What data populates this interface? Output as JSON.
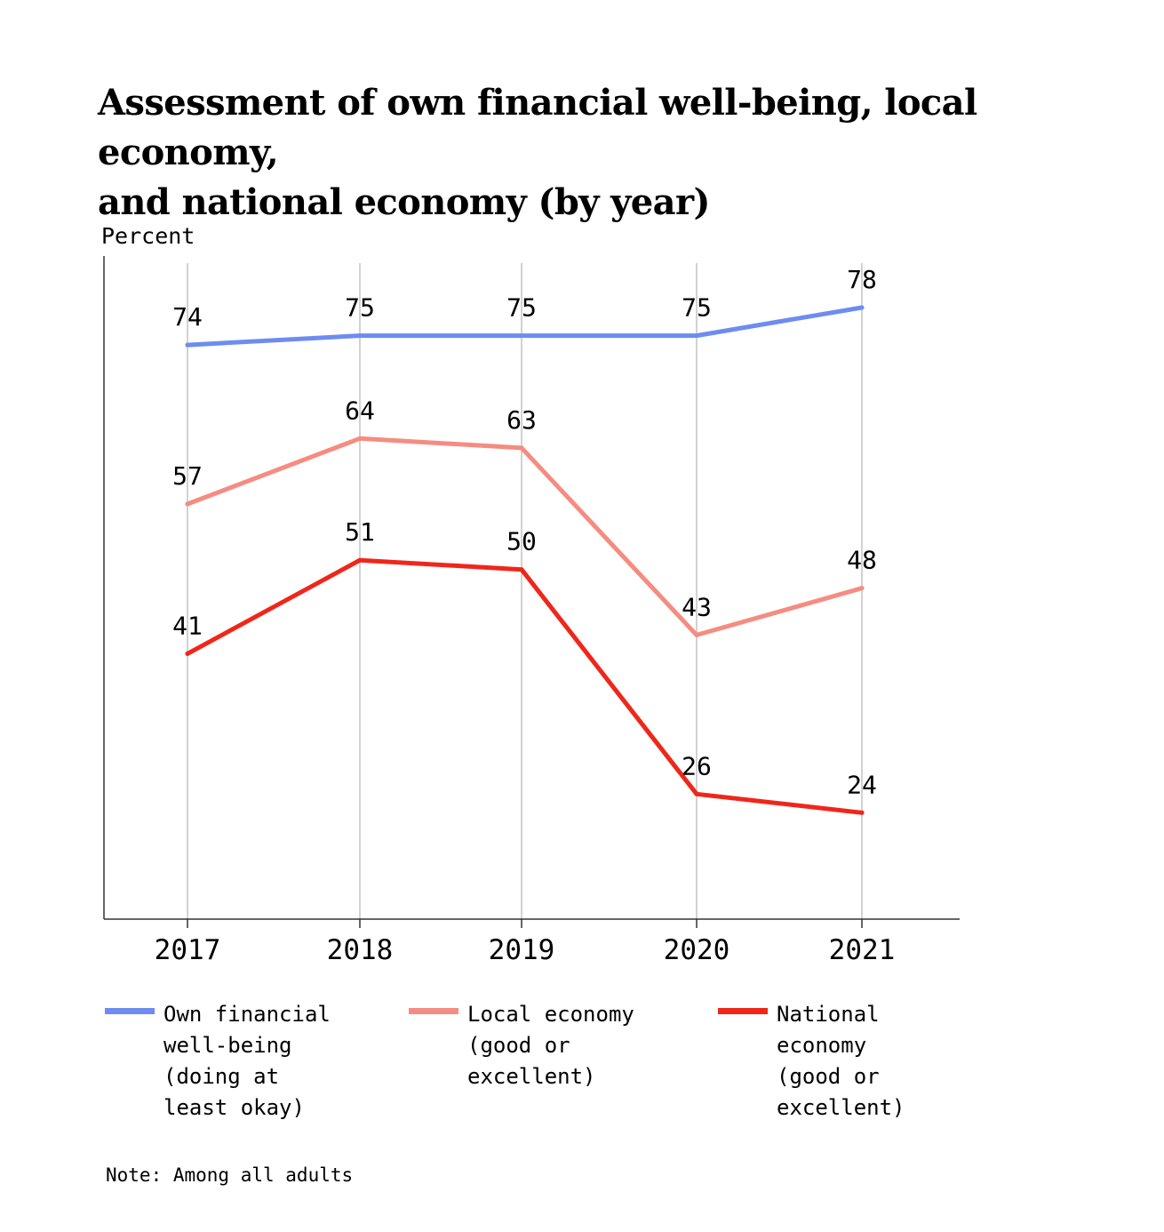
{
  "title_lines": [
    "Assessment of own financial well-being, local economy,",
    "and national economy (by year)"
  ],
  "note": "Note: Among all adults",
  "chart_data": {
    "type": "line",
    "ylabel": "Percent",
    "xlabel": "",
    "categories": [
      "2017",
      "2018",
      "2019",
      "2020",
      "2021"
    ],
    "series": [
      {
        "name": "Own financial well-being (doing at least okay)",
        "legend_lines": [
          "Own financial",
          "well-being",
          "(doing at",
          "least okay)"
        ],
        "color": "#6e8cf0",
        "values": [
          74,
          75,
          75,
          75,
          78
        ]
      },
      {
        "name": "Local economy (good or excellent)",
        "legend_lines": [
          "Local economy",
          "(good or",
          "excellent)"
        ],
        "color": "#f58c82",
        "values": [
          57,
          64,
          63,
          43,
          48
        ]
      },
      {
        "name": "National economy (good or excellent)",
        "legend_lines": [
          "National",
          "economy",
          "(good or",
          "excellent)"
        ],
        "color": "#f0261a",
        "values": [
          41,
          51,
          50,
          26,
          24
        ]
      }
    ],
    "ylim": [
      17,
      78
    ],
    "grid": "vertical",
    "legend_position": "bottom"
  }
}
